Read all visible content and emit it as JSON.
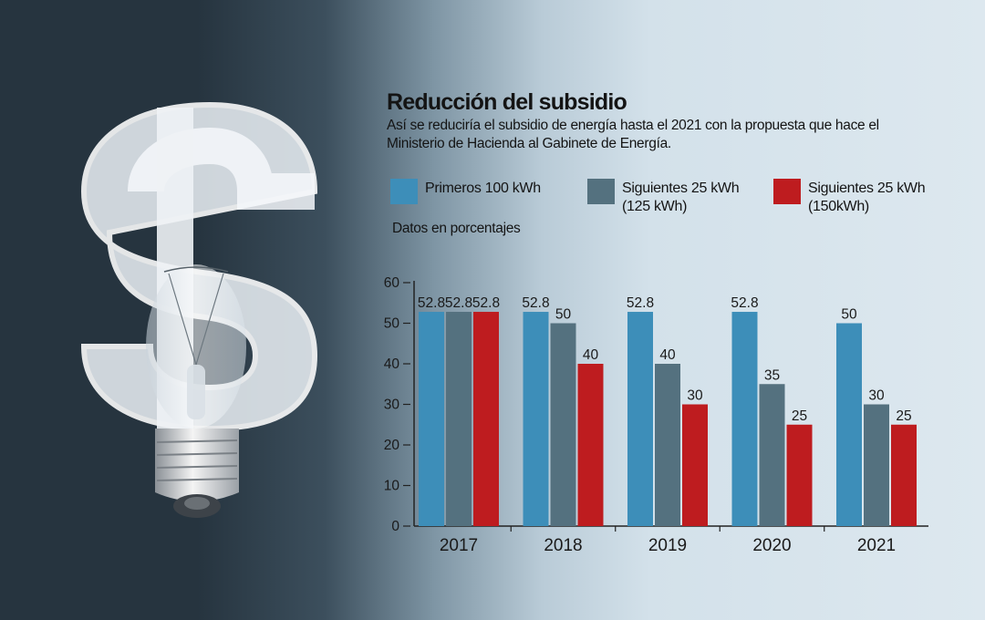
{
  "title": "Reducción del subsidio",
  "subtitle": "Así se reduciría el subsidio de energía hasta el 2021 con la propuesta que hace el Ministerio de Hacienda al Gabinete de Energía.",
  "unit_note": "Datos en porcentajes",
  "illustration": {
    "icon": "dollar-lightbulb-icon"
  },
  "legend": [
    {
      "label": "Primeros 100 kWh",
      "color": "#3d8eb9"
    },
    {
      "label": "Siguientes 25 kWh (125 kWh)",
      "color": "#54717f"
    },
    {
      "label": "Siguientes 25 kWh (150kWh)",
      "color": "#be1c1f"
    }
  ],
  "chart_data": {
    "type": "bar",
    "categories": [
      "2017",
      "2018",
      "2019",
      "2020",
      "2021"
    ],
    "series": [
      {
        "name": "Primeros 100 kWh",
        "color": "#3d8eb9",
        "values": [
          52.8,
          52.8,
          52.8,
          52.8,
          50
        ]
      },
      {
        "name": "Siguientes 25 kWh (125 kWh)",
        "color": "#54717f",
        "values": [
          52.8,
          50,
          40,
          35,
          30
        ]
      },
      {
        "name": "Siguientes 25 kWh (150kWh)",
        "color": "#be1c1f",
        "values": [
          52.8,
          40,
          30,
          25,
          25
        ]
      }
    ],
    "data_labels": [
      [
        "52.8",
        "52.8",
        "52.8",
        "52.8",
        "50"
      ],
      [
        "52.8",
        "50",
        "40",
        "35",
        "30"
      ],
      [
        "52.8",
        "40",
        "30",
        "25",
        "25"
      ]
    ],
    "yticks": [
      0,
      10,
      20,
      30,
      40,
      50,
      60
    ],
    "ylim": [
      0,
      60
    ],
    "xlabel": "",
    "ylabel": "",
    "grid": false
  }
}
